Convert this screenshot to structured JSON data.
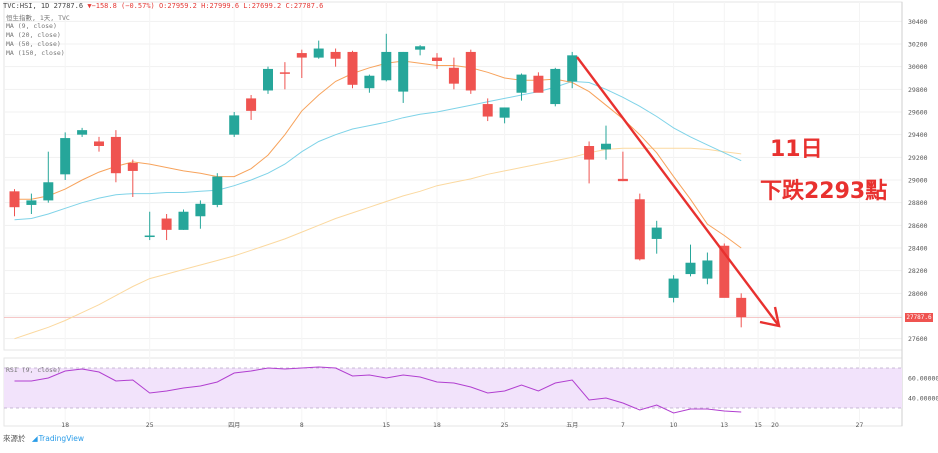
{
  "header": {
    "symbol": "TVC:HSI, 1D",
    "ohlc_text": "27787.6",
    "change_text": "−158.8 (−0.57%)",
    "o_text": "O:27959.2",
    "h_text": "H:27999.6",
    "l_text": "L:27699.2",
    "c_text": "C:27787.6"
  },
  "legend": {
    "title": "恒生指數, 1天, TVC",
    "ma1": "MA (9, close)",
    "ma2": "MA (20, close)",
    "ma3": "MA (50, close)",
    "ma4": "MA (150, close)"
  },
  "annotation": {
    "line1": "11日",
    "line2": "下跌2293點"
  },
  "rsi_label": "RSI (9, close)",
  "footer": {
    "source": "來源於",
    "brand": "TradingView"
  },
  "colors": {
    "up": "#26a69a",
    "down": "#ef5350",
    "ma9": "#f7a35c",
    "ma20": "#7fd3e8",
    "ma50": "#fbd9a0",
    "rsi": "#b13fd0",
    "arrow": "#e8312f",
    "rsi_band": "#f2e3fb"
  },
  "chart_data": {
    "type": "candlestick",
    "title": "恒生指數",
    "price_axis": {
      "ylim": [
        27500,
        30500
      ],
      "ticks": [
        27600,
        27800,
        28000,
        28200,
        28400,
        28600,
        28800,
        29000,
        29200,
        29400,
        29600,
        29800,
        30000,
        30200,
        30400
      ]
    },
    "last_price": "27787.6",
    "x_ticks": [
      {
        "i": 3,
        "label": "18"
      },
      {
        "i": 8,
        "label": "25"
      },
      {
        "i": 13,
        "label": "四月"
      },
      {
        "i": 17,
        "label": "8"
      },
      {
        "i": 22,
        "label": "15"
      },
      {
        "i": 25,
        "label": "18"
      },
      {
        "i": 29,
        "label": "25"
      },
      {
        "i": 33,
        "label": "五月"
      },
      {
        "i": 36,
        "label": "7"
      },
      {
        "i": 39,
        "label": "10"
      },
      {
        "i": 42,
        "label": "13"
      },
      {
        "i": 44,
        "label": "15"
      },
      {
        "i": 45,
        "label": "20"
      },
      {
        "i": 50,
        "label": "27"
      }
    ],
    "candles": [
      {
        "o": 28900,
        "h": 28920,
        "l": 28680,
        "c": 28760
      },
      {
        "o": 28780,
        "h": 28880,
        "l": 28700,
        "c": 28820
      },
      {
        "o": 28820,
        "h": 29250,
        "l": 28800,
        "c": 28980
      },
      {
        "o": 29050,
        "h": 29420,
        "l": 29000,
        "c": 29370
      },
      {
        "o": 29400,
        "h": 29460,
        "l": 29380,
        "c": 29440
      },
      {
        "o": 29340,
        "h": 29380,
        "l": 29250,
        "c": 29300
      },
      {
        "o": 29380,
        "h": 29440,
        "l": 28980,
        "c": 29060
      },
      {
        "o": 29150,
        "h": 29180,
        "l": 28850,
        "c": 29080
      },
      {
        "o": 28500,
        "h": 28720,
        "l": 28470,
        "c": 28510
      },
      {
        "o": 28660,
        "h": 28700,
        "l": 28470,
        "c": 28560
      },
      {
        "o": 28560,
        "h": 28740,
        "l": 28560,
        "c": 28720
      },
      {
        "o": 28680,
        "h": 28820,
        "l": 28570,
        "c": 28790
      },
      {
        "o": 28780,
        "h": 29060,
        "l": 28760,
        "c": 29030
      },
      {
        "o": 29400,
        "h": 29600,
        "l": 29380,
        "c": 29570
      },
      {
        "o": 29720,
        "h": 29750,
        "l": 29530,
        "c": 29610
      },
      {
        "o": 29790,
        "h": 30000,
        "l": 29760,
        "c": 29980
      },
      {
        "o": 29950,
        "h": 30040,
        "l": 29800,
        "c": 29940
      },
      {
        "o": 30120,
        "h": 30150,
        "l": 29900,
        "c": 30080
      },
      {
        "o": 30080,
        "h": 30230,
        "l": 30070,
        "c": 30160
      },
      {
        "o": 30130,
        "h": 30160,
        "l": 30000,
        "c": 30070
      },
      {
        "o": 30130,
        "h": 30140,
        "l": 29810,
        "c": 29840
      },
      {
        "o": 29810,
        "h": 29930,
        "l": 29770,
        "c": 29920
      },
      {
        "o": 29880,
        "h": 30290,
        "l": 29870,
        "c": 30130
      },
      {
        "o": 29780,
        "h": 30130,
        "l": 29680,
        "c": 30130
      },
      {
        "o": 30150,
        "h": 30190,
        "l": 30100,
        "c": 30180
      },
      {
        "o": 30080,
        "h": 30120,
        "l": 29980,
        "c": 30050
      },
      {
        "o": 29990,
        "h": 30080,
        "l": 29800,
        "c": 29850
      },
      {
        "o": 30130,
        "h": 30150,
        "l": 29760,
        "c": 29790
      },
      {
        "o": 29670,
        "h": 29720,
        "l": 29520,
        "c": 29560
      },
      {
        "o": 29550,
        "h": 29640,
        "l": 29500,
        "c": 29640
      },
      {
        "o": 29770,
        "h": 29940,
        "l": 29700,
        "c": 29930
      },
      {
        "o": 29920,
        "h": 29950,
        "l": 29780,
        "c": 29770
      },
      {
        "o": 29670,
        "h": 29990,
        "l": 29650,
        "c": 29980
      },
      {
        "o": 29870,
        "h": 30130,
        "l": 29810,
        "c": 30100
      },
      {
        "o": 29300,
        "h": 29340,
        "l": 28970,
        "c": 29180
      },
      {
        "o": 29270,
        "h": 29480,
        "l": 29180,
        "c": 29320
      },
      {
        "o": 29010,
        "h": 29250,
        "l": 28990,
        "c": 28990
      },
      {
        "o": 28830,
        "h": 28880,
        "l": 28290,
        "c": 28300
      },
      {
        "o": 28480,
        "h": 28640,
        "l": 28350,
        "c": 28580
      },
      {
        "o": 27960,
        "h": 28160,
        "l": 27920,
        "c": 28130
      },
      {
        "o": 28170,
        "h": 28430,
        "l": 28150,
        "c": 28270
      },
      {
        "o": 28130,
        "h": 28360,
        "l": 28080,
        "c": 28290
      },
      {
        "o": 28420,
        "h": 28440,
        "l": 27980,
        "c": 27960
      },
      {
        "o": 27960,
        "h": 28000,
        "l": 27700,
        "c": 27790
      }
    ],
    "ma9": [
      28830,
      28830,
      28860,
      28920,
      29000,
      29070,
      29120,
      29160,
      29140,
      29110,
      29080,
      29060,
      29030,
      29030,
      29100,
      29220,
      29400,
      29610,
      29750,
      29870,
      29940,
      29990,
      30030,
      30050,
      30030,
      30010,
      30010,
      29990,
      29950,
      29900,
      29880,
      29880,
      29890,
      29860,
      29780,
      29660,
      29540,
      29400,
      29240,
      29030,
      28830,
      28610,
      28510,
      28400
    ],
    "ma20": [
      28650,
      28660,
      28700,
      28750,
      28800,
      28840,
      28870,
      28880,
      28880,
      28890,
      28890,
      28900,
      28910,
      28950,
      29000,
      29060,
      29140,
      29250,
      29340,
      29400,
      29450,
      29480,
      29510,
      29550,
      29580,
      29600,
      29630,
      29660,
      29690,
      29720,
      29750,
      29780,
      29820,
      29870,
      29860,
      29800,
      29730,
      29650,
      29560,
      29460,
      29380,
      29310,
      29240,
      29170
    ],
    "ma50": [
      27600,
      27650,
      27700,
      27760,
      27830,
      27900,
      27980,
      28060,
      28130,
      28170,
      28210,
      28250,
      28290,
      28330,
      28380,
      28430,
      28480,
      28540,
      28600,
      28660,
      28710,
      28760,
      28810,
      28860,
      28900,
      28950,
      28980,
      29010,
      29050,
      29080,
      29110,
      29140,
      29170,
      29200,
      29240,
      29270,
      29280,
      29280,
      29280,
      29280,
      29280,
      29270,
      29250,
      29230
    ],
    "rsi_axis": {
      "ylim": [
        20,
        80
      ],
      "ticks": [
        40,
        60
      ],
      "band": [
        30,
        70
      ]
    },
    "rsi": [
      57,
      57,
      60,
      67,
      69,
      66,
      57,
      58,
      45,
      47,
      50,
      52,
      56,
      65,
      67,
      70,
      69,
      70,
      71,
      70,
      62,
      63,
      60,
      63,
      61,
      56,
      55,
      51,
      45,
      47,
      53,
      47,
      55,
      58,
      38,
      40,
      35,
      28,
      33,
      25,
      29,
      29,
      27,
      26
    ]
  }
}
